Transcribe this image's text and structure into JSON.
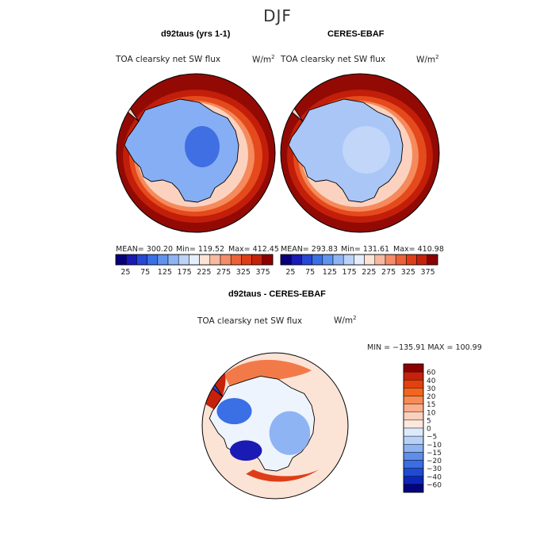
{
  "season_title": "DJF",
  "colors": {
    "seq": [
      "#08007a",
      "#1a1ab4",
      "#2747d6",
      "#3a6fe6",
      "#5f93ee",
      "#8fb4f4",
      "#bcd3f8",
      "#e5eefc",
      "#fde3d6",
      "#f7b9a0",
      "#f48c6a",
      "#ec6238",
      "#de3e17",
      "#c6210b",
      "#8c0000"
    ],
    "diff": [
      "#8c0000",
      "#c6210b",
      "#e2410f",
      "#f3651f",
      "#f78b53",
      "#f9ae8c",
      "#fbd0be",
      "#fde8de",
      "#ddeafb",
      "#b8d1f6",
      "#8fb2f1",
      "#5f8ee9",
      "#3a6ee2",
      "#1f4bd2",
      "#0d26b8",
      "#04047e"
    ],
    "land_blue": "#86aef4",
    "coast_blue": "#a9c6f7",
    "ring_red": "#930a04",
    "ocean_ref": "#fbe3d6"
  },
  "panels": {
    "model": {
      "title": "d92taus (yrs 1-1)",
      "field": "TOA clearsky net SW flux",
      "units": "W/m",
      "units_sup": "2",
      "mean": "MEAN= 300.20",
      "min": "Min= 119.52",
      "max": "Max= 412.45"
    },
    "obs": {
      "title": "CERES-EBAF",
      "field": "TOA clearsky net SW flux",
      "units": "W/m",
      "units_sup": "2",
      "mean": "MEAN= 293.83",
      "min": "Min= 131.61",
      "max": "Max= 410.98"
    },
    "diff": {
      "title": "d92taus - CERES-EBAF",
      "field": "TOA clearsky net SW flux",
      "units": "W/m",
      "units_sup": "2",
      "minmax": "MIN = −135.91  MAX = 100.99"
    }
  },
  "chart_data": [
    {
      "type": "heatmap",
      "title": "d92taus (yrs 1-1)",
      "subtitle": "TOA clearsky net SW flux",
      "units": "W/m2",
      "projection": "south polar stereographic",
      "mean": 300.2,
      "min": 119.52,
      "max": 412.45,
      "colorbar_ticks": [
        "25",
        "75",
        "125",
        "175",
        "225",
        "275",
        "325",
        "375"
      ],
      "colorbar_range": [
        0,
        400
      ],
      "colorbar_bins": 15
    },
    {
      "type": "heatmap",
      "title": "CERES-EBAF",
      "subtitle": "TOA clearsky net SW flux",
      "units": "W/m2",
      "projection": "south polar stereographic",
      "mean": 293.83,
      "min": 131.61,
      "max": 410.98,
      "colorbar_ticks": [
        "25",
        "75",
        "125",
        "175",
        "225",
        "275",
        "325",
        "375"
      ],
      "colorbar_range": [
        0,
        400
      ],
      "colorbar_bins": 15
    },
    {
      "type": "heatmap",
      "title": "d92taus - CERES-EBAF",
      "subtitle": "TOA clearsky net SW flux",
      "units": "W/m2",
      "projection": "south polar stereographic",
      "min": -135.91,
      "max": 100.99,
      "colorbar_levels": [
        "60",
        "40",
        "30",
        "20",
        "15",
        "10",
        "5",
        "0",
        "−5",
        "−10",
        "−15",
        "−20",
        "−30",
        "−40",
        "−60"
      ]
    }
  ]
}
